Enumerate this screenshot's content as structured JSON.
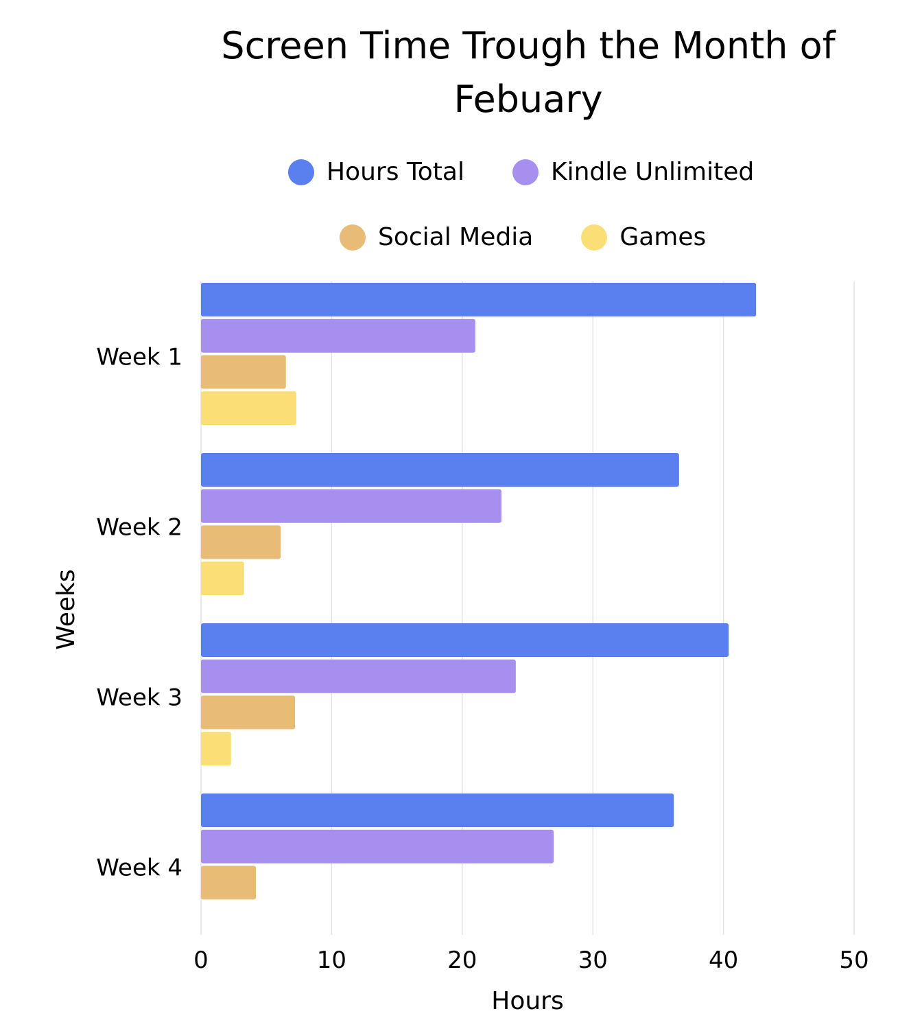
{
  "chart_data": {
    "type": "bar",
    "orientation": "horizontal",
    "title": "Screen Time Trough the Month of Febuary",
    "xlabel": "Hours",
    "ylabel": "Weeks",
    "categories": [
      "Week 1",
      "Week 2",
      "Week 3",
      "Week 4"
    ],
    "xlim": [
      0,
      50
    ],
    "xticks": [
      "0",
      "10",
      "20",
      "30",
      "40",
      "50"
    ],
    "grid": true,
    "legend_position": "top",
    "series": [
      {
        "name": "Hours Total",
        "color": "#5a7fee",
        "values": [
          42.5,
          36.6,
          40.4,
          36.2
        ]
      },
      {
        "name": "Kindle Unlimited",
        "color": "#a78ff0",
        "values": [
          21,
          23,
          24.1,
          27
        ]
      },
      {
        "name": "Social Media",
        "color": "#e8bb77",
        "values": [
          6.5,
          6.1,
          7.2,
          4.2
        ]
      },
      {
        "name": "Games",
        "color": "#f9df75",
        "values": [
          7.3,
          3.3,
          2.3,
          0
        ]
      }
    ]
  }
}
